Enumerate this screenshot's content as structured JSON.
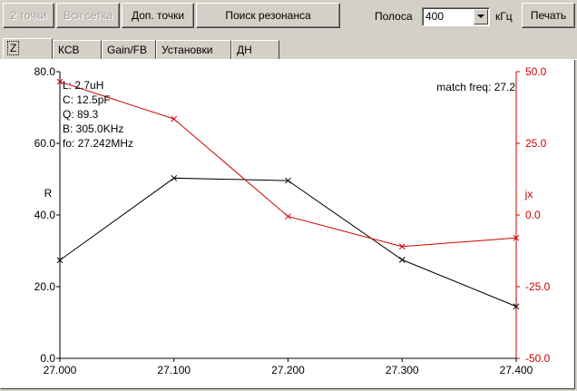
{
  "toolbar": {
    "btn_two_points": "2 точки",
    "btn_whole_grid": "Вся сетка",
    "btn_extra_points": "Доп. точки",
    "btn_resonance_search": "Поиск резонанса",
    "band_label": "Полоса",
    "band_value": "400",
    "band_unit": "кГц",
    "btn_print": "Печать"
  },
  "tabs": [
    "Z",
    "КСВ",
    "Gain/FB",
    "Установки",
    "ДН"
  ],
  "active_tab": "Z",
  "colors": {
    "R": "#000000",
    "jX": "#cc0000",
    "panel": "#d4d0c8"
  },
  "chart_data": {
    "type": "line",
    "x": [
      27.0,
      27.1,
      27.2,
      27.3,
      27.4
    ],
    "x_tick_labels": [
      "27.000",
      "27.100",
      "27.200",
      "27.300",
      "27.400"
    ],
    "xlim": [
      27.0,
      27.4
    ],
    "series": [
      {
        "name": "R",
        "axis": "left",
        "values": [
          27.4,
          50.3,
          49.6,
          27.5,
          14.5
        ]
      },
      {
        "name": "jx",
        "axis": "right",
        "values": [
          46.5,
          33.5,
          -0.5,
          -11,
          -8
        ]
      }
    ],
    "left_axis": {
      "label": "R",
      "ylim": [
        0,
        80
      ],
      "ticks": [
        "0.0",
        "20.0",
        "40.0",
        "60.0",
        "80.0"
      ]
    },
    "right_axis": {
      "label": "jx",
      "ylim": [
        -50,
        50
      ],
      "ticks": [
        "-50.0",
        "-25.0",
        "0.0",
        "25.0",
        "50.0"
      ]
    },
    "annotations": [
      "L: 2.7uH",
      "C: 12.5pF",
      "Q: 89.3",
      "B: 305.0KHz",
      "fo: 27.242MHz"
    ],
    "match_freq": "match freq: 27.2",
    "grid": false
  }
}
